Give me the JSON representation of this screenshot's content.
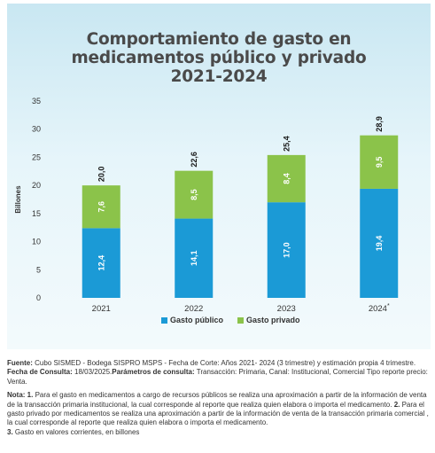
{
  "title_lines": [
    "Comportamiento de gasto en",
    "medicamentos público y privado",
    "2021-2024"
  ],
  "colors": {
    "publico": "#1b9ad6",
    "privado": "#8bc34a",
    "axis_text": "#333333"
  },
  "chart_data": {
    "type": "bar",
    "stacked": true,
    "title": "Comportamiento de gasto en medicamentos público y privado 2021-2024",
    "categories": [
      "2021",
      "2022",
      "2023",
      "2024"
    ],
    "category_suffix": [
      "",
      "",
      "",
      "*"
    ],
    "series": [
      {
        "name": "Gasto público",
        "values": [
          12.4,
          14.1,
          17.0,
          19.4
        ],
        "labels": [
          "12,4",
          "14,1",
          "17,0",
          "19,4"
        ]
      },
      {
        "name": "Gasto privado",
        "values": [
          7.6,
          8.5,
          8.4,
          9.5
        ],
        "labels": [
          "7,6",
          "8,5",
          "8,4",
          "9,5"
        ]
      }
    ],
    "totals": [
      20.0,
      22.6,
      25.4,
      28.9
    ],
    "total_labels": [
      "20,0",
      "22,6",
      "25,4",
      "28,9"
    ],
    "ylabel": "Billones",
    "ylim": [
      0,
      35
    ],
    "yticks": [
      "0",
      "5",
      "10",
      "15",
      "20",
      "25",
      "30",
      "35"
    ],
    "grid": false,
    "legend_position": "bottom"
  },
  "notes": {
    "fuente_label": "Fuente:",
    "fuente_text": " Cubo SISMED - Bodega SISPRO MSPS - Fecha de Corte: Años 2021- 2024 (3 trimestre) y estimación propia 4 trimestre. ",
    "fecha_label": "Fecha de Consulta:",
    "fecha_text": " 18/03/2025.",
    "param_label": "Parámetros de consulta:",
    "param_text": " Transacción: Primaria, Canal: Institucional, Comercial Tipo reporte precio: Venta.",
    "nota_label": "Nota:",
    "n1_label": " 1.",
    "n1_text": " Para el gasto en medicamentos a cargo de recursos públicos se realiza una aproximación a partir de la información de venta de la transacción primaria institucional, la cual corresponde al reporte que realiza quien elabora o importa el medicamento. ",
    "n2_label": "2.",
    "n2_text": " Para el gasto privado por medicamentos se realiza una aproximación a partir de la información de venta de la transacción primaria comercial , la cual corresponde al reporte que realiza quien elabora o importa el medicamento.",
    "n3_label": "3.",
    "n3_text": " Gasto en valores corrientes, en billones"
  }
}
